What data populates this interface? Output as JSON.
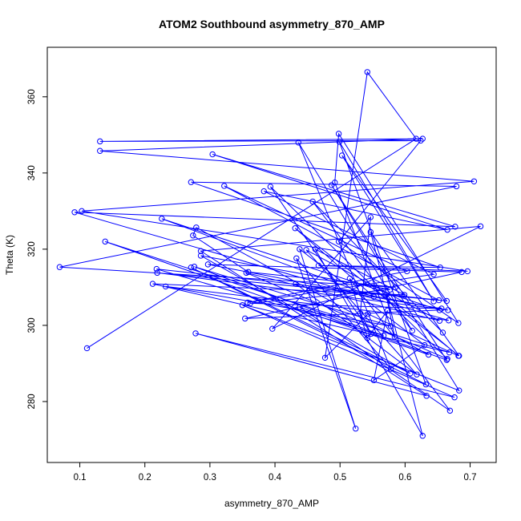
{
  "chart_data": {
    "type": "line",
    "title": "ATOM2 Southbound asymmetry_870_AMP",
    "xlabel": "asymmetry_870_AMP",
    "ylabel": "Theta (K)",
    "xlim": [
      0.05,
      0.74
    ],
    "ylim": [
      264,
      373
    ],
    "x_ticks": [
      0.1,
      0.2,
      0.3,
      0.4,
      0.5,
      0.6,
      0.7
    ],
    "x_tick_labels": [
      "0.1",
      "0.2",
      "0.3",
      "0.4",
      "0.5",
      "0.6",
      "0.7"
    ],
    "y_ticks": [
      280,
      300,
      320,
      340,
      360
    ],
    "y_tick_labels": [
      "280",
      "300",
      "320",
      "340",
      "360"
    ],
    "line_color": "#0000ff",
    "marker": "open-circle",
    "grid": false,
    "series": [
      {
        "x": [
          0.111,
          0.617,
          0.542,
          0.477,
          0.543,
          0.682,
          0.571,
          0.584,
          0.492,
          0.498,
          0.682,
          0.498,
          0.624,
          0.131,
          0.627,
          0.131,
          0.706,
          0.103,
          0.696,
          0.467,
          0.654,
          0.271,
          0.679,
          0.069,
          0.585,
          0.359,
          0.274,
          0.279,
          0.636,
          0.139,
          0.668,
          0.212,
          0.599,
          0.462,
          0.627,
          0.547,
          0.683,
          0.431,
          0.552,
          0.226,
          0.653,
          0.354,
          0.687,
          0.297,
          0.666,
          0.219,
          0.652,
          0.322,
          0.603,
          0.358,
          0.644,
          0.383,
          0.665,
          0.304,
          0.677,
          0.092,
          0.667,
          0.232,
          0.578,
          0.276,
          0.567,
          0.218,
          0.664,
          0.503,
          0.644,
          0.499,
          0.632,
          0.271,
          0.608,
          0.286,
          0.577,
          0.362,
          0.656,
          0.432,
          0.618,
          0.448,
          0.653,
          0.356,
          0.665,
          0.393,
          0.548,
          0.531,
          0.547,
          0.396,
          0.716,
          0.286,
          0.633,
          0.278,
          0.676,
          0.35,
          0.683,
          0.487,
          0.664,
          0.438,
          0.669,
          0.515,
          0.542,
          0.573,
          0.552,
          0.63,
          0.438,
          0.524,
          0.433,
          0.578,
          0.436,
          0.611,
          0.458,
          0.658
        ],
        "y": [
          294.0,
          349.0,
          366.5,
          291.5,
          303.0,
          292.0,
          308.0,
          297.0,
          337.5,
          350.3,
          300.6,
          322.0,
          348.5,
          348.3,
          349.0,
          345.8,
          337.8,
          330.0,
          314.2,
          315.7,
          315.2,
          337.6,
          336.5,
          315.3,
          310.0,
          314.0,
          323.6,
          325.7,
          292.3,
          322.0,
          292.9,
          310.9,
          308.0,
          320.0,
          271.0,
          324.5,
          292.0,
          325.5,
          307.5,
          328.0,
          304.0,
          301.8,
          314.0,
          316.0,
          304.0,
          313.8,
          306.6,
          336.6,
          314.2,
          306.0,
          313.4,
          335.2,
          325.1,
          344.9,
          325.9,
          329.7,
          301.3,
          310.2,
          299.8,
          315.4,
          297.3,
          314.8,
          306.4,
          344.6,
          306.3,
          348.2,
          284.5,
          315.2,
          287.4,
          318.3,
          309.4,
          305.8,
          304.4,
          310.9,
          287.1,
          319.8,
          301.2,
          313.8,
          291.2,
          336.4,
          297.8,
          303.2,
          328.4,
          299.1,
          326.0,
          319.5,
          281.5,
          297.9,
          281.1,
          305.3,
          282.9,
          336.8,
          290.9,
          304.8,
          277.6,
          312.3,
          296.7,
          303.9,
          285.6,
          294.8,
          320.0,
          272.9,
          317.6,
          288.6,
          348.0,
          298.6,
          332.5,
          298.1
        ]
      }
    ]
  }
}
